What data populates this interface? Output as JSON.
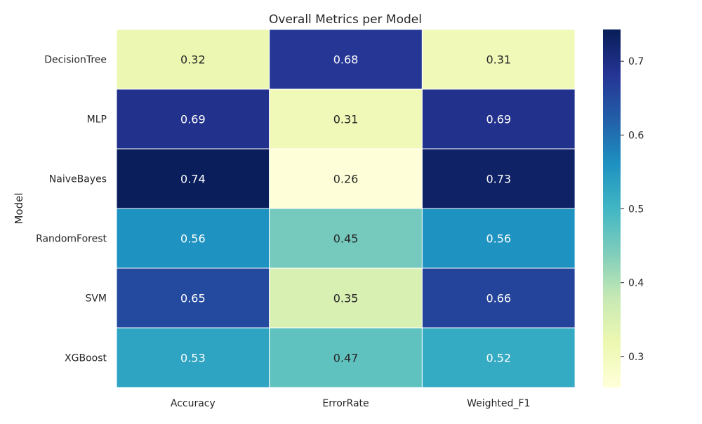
{
  "chart_data": {
    "type": "heatmap",
    "title": "Overall Metrics per Model",
    "xlabel": "",
    "ylabel": "Model",
    "x_categories": [
      "Accuracy",
      "ErrorRate",
      "Weighted_F1"
    ],
    "y_categories": [
      "DecisionTree",
      "MLP",
      "NaiveBayes",
      "RandomForest",
      "SVM",
      "XGBoost"
    ],
    "values": [
      [
        0.32,
        0.68,
        0.31
      ],
      [
        0.69,
        0.31,
        0.69
      ],
      [
        0.74,
        0.26,
        0.73
      ],
      [
        0.56,
        0.45,
        0.56
      ],
      [
        0.65,
        0.35,
        0.66
      ],
      [
        0.53,
        0.47,
        0.52
      ]
    ],
    "value_labels": [
      [
        "0.32",
        "0.68",
        "0.31"
      ],
      [
        "0.69",
        "0.31",
        "0.69"
      ],
      [
        "0.74",
        "0.26",
        "0.73"
      ],
      [
        "0.56",
        "0.45",
        "0.56"
      ],
      [
        "0.65",
        "0.35",
        "0.66"
      ],
      [
        "0.53",
        "0.47",
        "0.52"
      ]
    ],
    "colormap": "YlGnBu",
    "color_range": [
      0.258,
      0.743
    ],
    "colorbar_ticks": [
      0.3,
      0.4,
      0.5,
      0.6,
      0.7
    ],
    "colorbar_tick_labels": [
      "0.3",
      "0.4",
      "0.5",
      "0.6",
      "0.7"
    ],
    "grid": false,
    "legend": "colorbar-right"
  }
}
